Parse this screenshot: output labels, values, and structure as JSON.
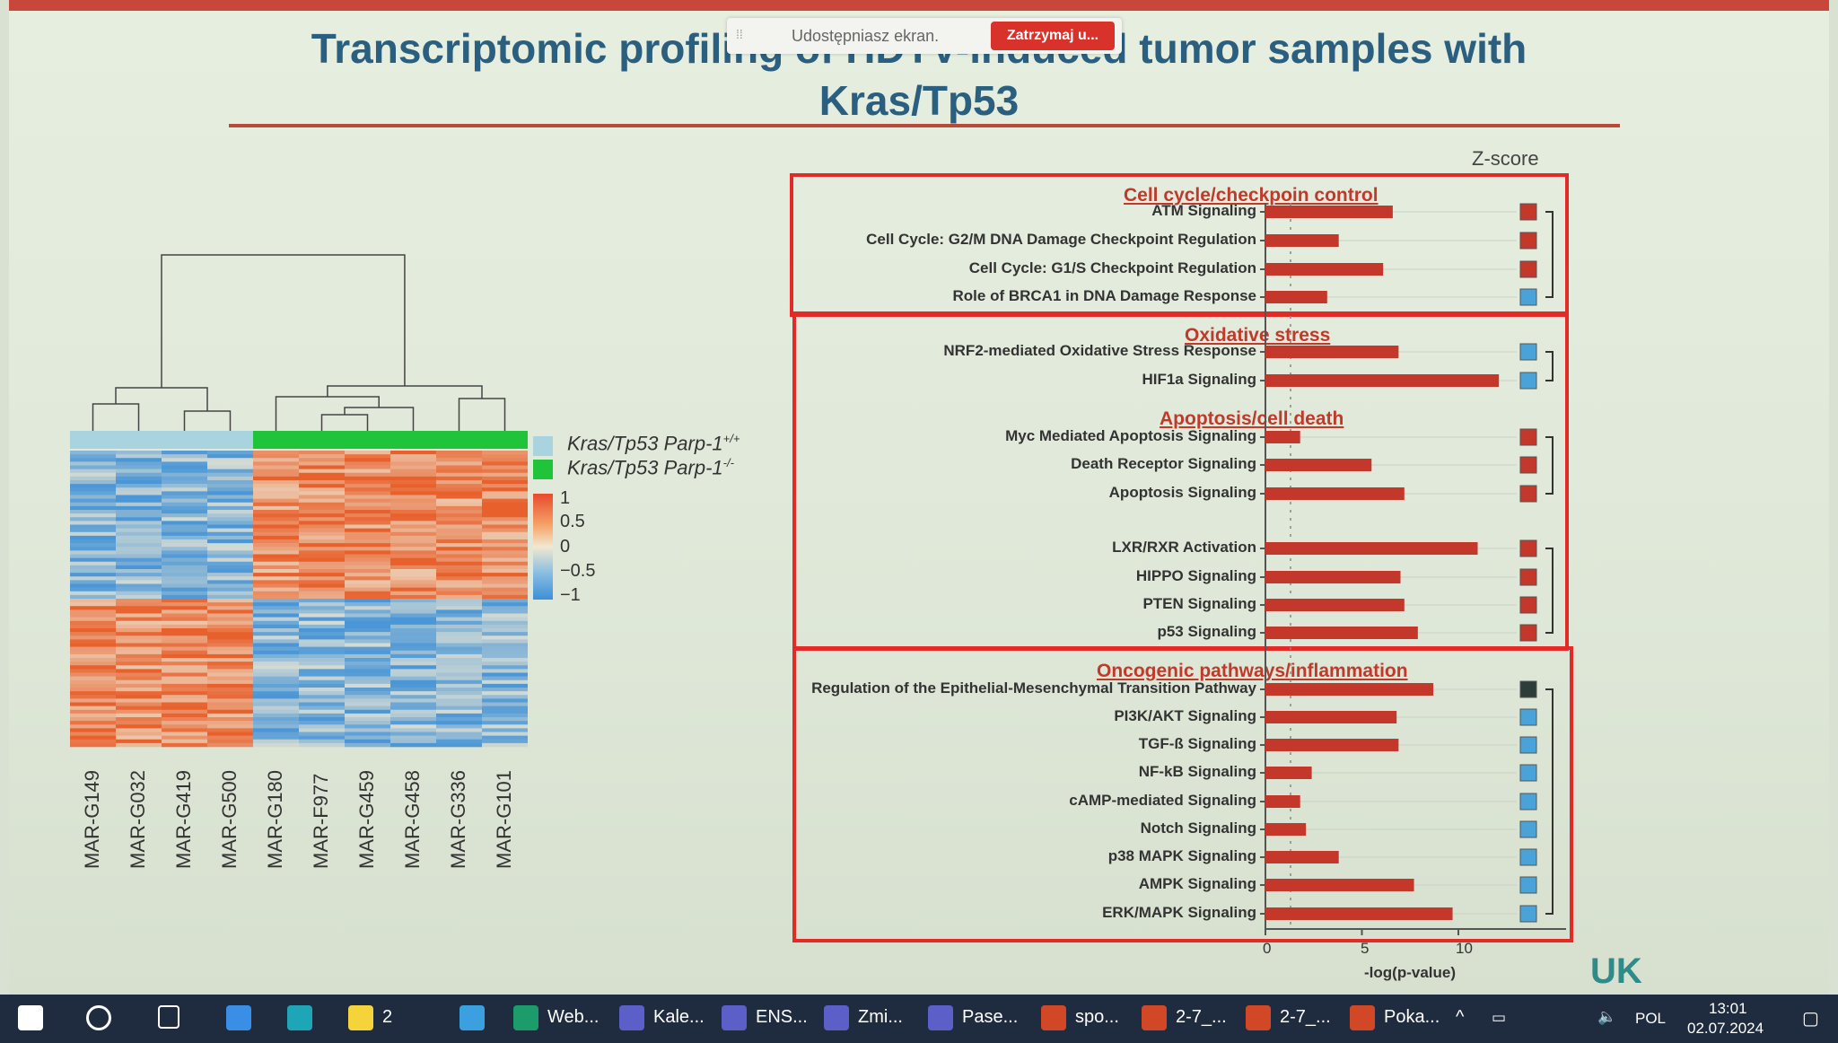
{
  "share_bar": {
    "grip": "⁞⁞",
    "text": "Udostępniasz ekran.",
    "stop_button": "Zatrzymaj u..."
  },
  "slide": {
    "title_line1": "Transcriptomic profiling of HDTV-induced tumor samples with",
    "title_line2": "Kras/Tp53",
    "legend": {
      "wt": "Kras/Tp53 Parp-1+/+",
      "ko": "Kras/Tp53 Parp-1-/-",
      "wt_color": "#a8d3df",
      "ko_color": "#1fc43a"
    },
    "scale_ticks": [
      "1",
      "0.5",
      "0",
      "−0.5",
      "−1"
    ],
    "samples": [
      "MAR-G149",
      "MAR-G032",
      "MAR-G419",
      "MAR-G500",
      "MAR-G180",
      "MAR-F977",
      "MAR-G459",
      "MAR-G458",
      "MAR-G336",
      "MAR-G101"
    ],
    "zscore_label": "Z-score",
    "x_axis_label": "-log(p-value)",
    "x_ticks": [
      "0",
      "5",
      "10"
    ],
    "logo_text": "UK"
  },
  "chart_data": [
    {
      "type": "heatmap",
      "title": "",
      "columns": [
        "MAR-G149",
        "MAR-G032",
        "MAR-G419",
        "MAR-G500",
        "MAR-G180",
        "MAR-F977",
        "MAR-G459",
        "MAR-G458",
        "MAR-G336",
        "MAR-G101"
      ],
      "groups": [
        "Kras/Tp53 Parp-1+/+",
        "Kras/Tp53 Parp-1+/+",
        "Kras/Tp53 Parp-1+/+",
        "Kras/Tp53 Parp-1+/+",
        "Kras/Tp53 Parp-1-/-",
        "Kras/Tp53 Parp-1-/-",
        "Kras/Tp53 Parp-1-/-",
        "Kras/Tp53 Parp-1-/-",
        "Kras/Tp53 Parp-1-/-",
        "Kras/Tp53 Parp-1-/-"
      ],
      "color_range": [
        -1,
        1
      ],
      "blocks": [
        {
          "rows": "upper half",
          "wt_value": -0.6,
          "ko_value": 0.7
        },
        {
          "rows": "lower half",
          "wt_value": 0.7,
          "ko_value": -0.6
        }
      ]
    },
    {
      "type": "bar",
      "orientation": "horizontal",
      "xlabel": "-log(p-value)",
      "xlim": [
        0,
        15
      ],
      "sections": [
        {
          "name": "Cell cycle/checkpoin control",
          "items": [
            {
              "label": "ATM Signaling",
              "value": 6.6,
              "z": "red"
            },
            {
              "label": "Cell Cycle: G2/M DNA Damage Checkpoint Regulation",
              "value": 3.8,
              "z": "red"
            },
            {
              "label": "Cell Cycle: G1/S Checkpoint Regulation",
              "value": 6.1,
              "z": "red"
            },
            {
              "label": "Role of BRCA1 in DNA Damage Response",
              "value": 3.2,
              "z": "blue"
            }
          ]
        },
        {
          "name": "Oxidative stress",
          "items": [
            {
              "label": "NRF2-mediated Oxidative Stress Response",
              "value": 6.9,
              "z": "blue"
            },
            {
              "label": "HIF1a Signaling",
              "value": 12.1,
              "z": "blue"
            }
          ]
        },
        {
          "name": "Apoptosis/cell death",
          "items": [
            {
              "label": "Myc Mediated Apoptosis Signaling",
              "value": 1.8,
              "z": "red"
            },
            {
              "label": "Death Receptor Signaling",
              "value": 5.5,
              "z": "red"
            },
            {
              "label": "Apoptosis Signaling",
              "value": 7.2,
              "z": "red"
            },
            {
              "label": "LXR/RXR Activation",
              "value": 11.0,
              "z": "red"
            },
            {
              "label": "HIPPO Signaling",
              "value": 7.0,
              "z": "red"
            },
            {
              "label": "PTEN Signaling",
              "value": 7.2,
              "z": "red"
            },
            {
              "label": "p53 Signaling",
              "value": 7.9,
              "z": "red"
            }
          ]
        },
        {
          "name": "Oncogenic pathways/inflammation",
          "items": [
            {
              "label": "Regulation of the Epithelial-Mesenchymal Transition Pathway",
              "value": 8.7,
              "z": "dark"
            },
            {
              "label": "PI3K/AKT Signaling",
              "value": 6.8,
              "z": "blue"
            },
            {
              "label": "TGF-ß Signaling",
              "value": 6.9,
              "z": "blue"
            },
            {
              "label": "NF-kB Signaling",
              "value": 2.4,
              "z": "blue"
            },
            {
              "label": "cAMP-mediated Signaling",
              "value": 1.8,
              "z": "blue"
            },
            {
              "label": "Notch Signaling",
              "value": 2.1,
              "z": "blue"
            },
            {
              "label": "p38 MAPK Signaling",
              "value": 3.8,
              "z": "blue"
            },
            {
              "label": "AMPK Signaling",
              "value": 7.7,
              "z": "blue"
            },
            {
              "label": "ERK/MAPK Signaling",
              "value": 9.7,
              "z": "blue"
            }
          ]
        }
      ],
      "colors": {
        "bar": "#c4382c",
        "red": "#c4382c",
        "blue": "#4aa3d8",
        "dark": "#2d3d3a"
      }
    }
  ],
  "taskbar": {
    "items": [
      {
        "label": "",
        "icon": "windows-start-icon"
      },
      {
        "label": "",
        "icon": "search-icon"
      },
      {
        "label": "",
        "icon": "task-view-icon"
      },
      {
        "label": "",
        "icon": "mail-icon"
      },
      {
        "label": "",
        "icon": "edge-icon"
      },
      {
        "label": "2",
        "icon": "sticky-notes-icon"
      },
      {
        "label": "",
        "icon": "computer-icon"
      },
      {
        "label": "Web...",
        "icon": "webex-icon"
      },
      {
        "label": "Kale...",
        "icon": "teams-icon"
      },
      {
        "label": "ENS...",
        "icon": "teams-icon"
      },
      {
        "label": "Zmi...",
        "icon": "teams-icon"
      },
      {
        "label": "Pase...",
        "icon": "teams-icon"
      },
      {
        "label": "spo...",
        "icon": "powerpoint-icon"
      },
      {
        "label": "2-7_...",
        "icon": "powerpoint-icon"
      },
      {
        "label": "2-7_...",
        "icon": "powerpoint-icon"
      },
      {
        "label": "Poka...",
        "icon": "powerpoint-icon"
      }
    ],
    "tray": {
      "lang": "POL",
      "time": "13:01",
      "date": "02.07.2024"
    }
  }
}
